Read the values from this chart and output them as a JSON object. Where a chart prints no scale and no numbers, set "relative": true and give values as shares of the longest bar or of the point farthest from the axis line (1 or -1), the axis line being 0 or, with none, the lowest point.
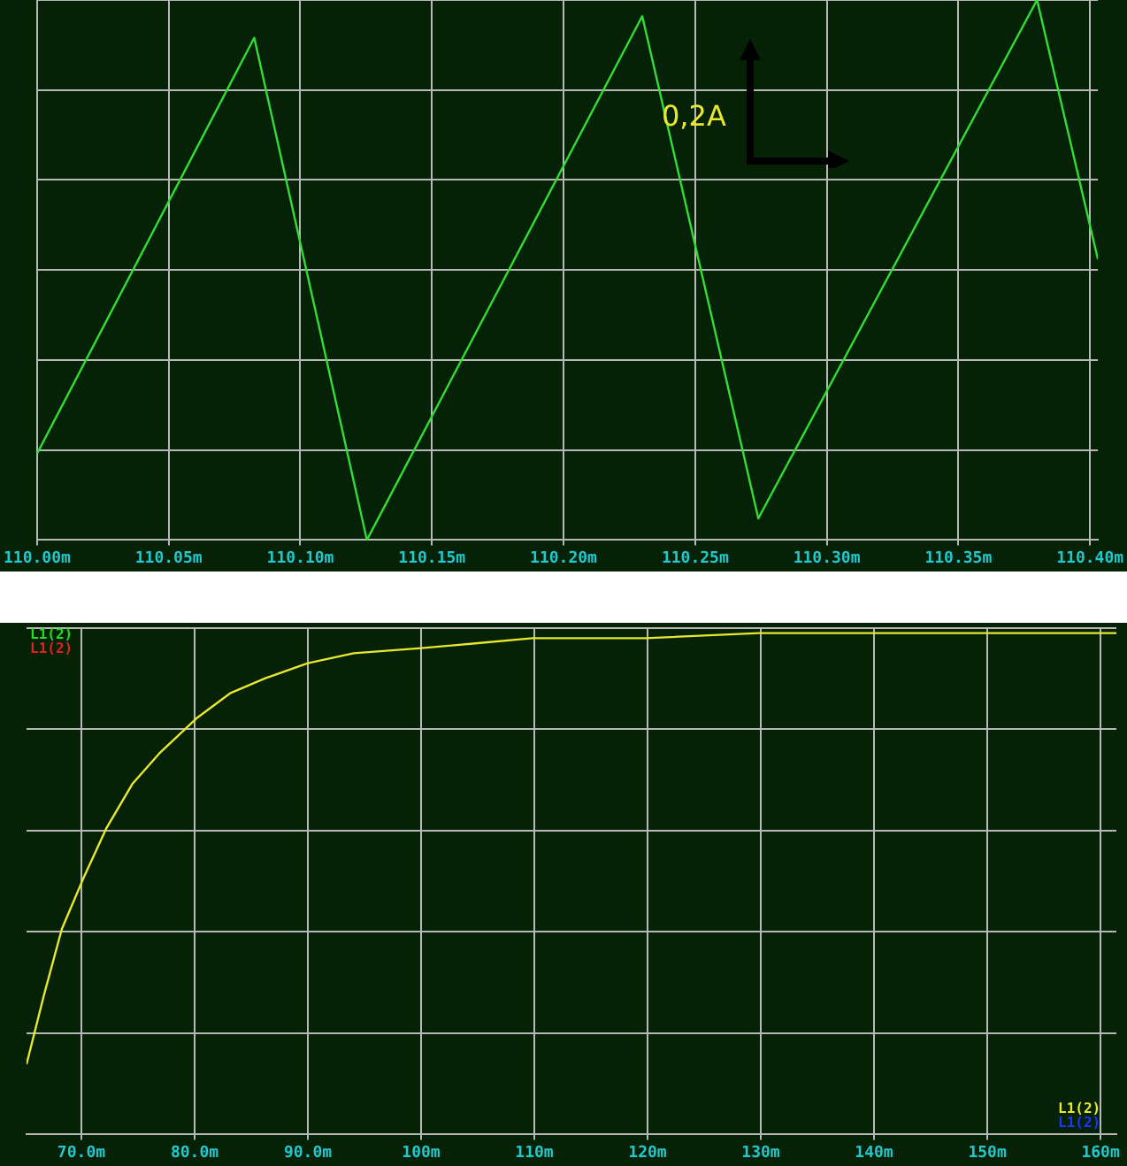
{
  "chart_data": [
    {
      "type": "line",
      "relative": true,
      "grid": true,
      "legend": false,
      "marker": "none",
      "line_style": "solid",
      "tick_labels": "x",
      "xlim": [
        110.0,
        110.403
      ],
      "xticks": [
        {
          "value": 110.0,
          "label": "110.00m"
        },
        {
          "value": 110.05,
          "label": "110.05m"
        },
        {
          "value": 110.1,
          "label": "110.10m"
        },
        {
          "value": 110.15,
          "label": "110.15m"
        },
        {
          "value": 110.2,
          "label": "110.20m"
        },
        {
          "value": 110.25,
          "label": "110.25m"
        },
        {
          "value": 110.3,
          "label": "110.30m"
        },
        {
          "value": 110.35,
          "label": "110.35m"
        },
        {
          "value": 110.4,
          "label": "110.40m"
        }
      ],
      "annotations": [
        "0,2A"
      ],
      "series": [
        {
          "color": "#33dd33",
          "x": [
            110.0,
            110.0825,
            110.1253,
            110.2299,
            110.274,
            110.3799,
            110.403
          ],
          "values": [
            0.16,
            0.93,
            0,
            0.97,
            0.04,
            1,
            0.52
          ]
        }
      ]
    },
    {
      "type": "line",
      "relative": true,
      "grid": true,
      "legend": false,
      "marker": "none",
      "line_style": "solid",
      "tick_labels": "x",
      "xlim": [
        65.16,
        161.4
      ],
      "xticks": [
        {
          "value": 70,
          "label": "70.0m"
        },
        {
          "value": 80,
          "label": "80.0m"
        },
        {
          "value": 90,
          "label": "90.0m"
        },
        {
          "value": 100,
          "label": "100m"
        },
        {
          "value": 110,
          "label": "110m"
        },
        {
          "value": 120,
          "label": "120m"
        },
        {
          "value": 130,
          "label": "130m"
        },
        {
          "value": 140,
          "label": "140m"
        },
        {
          "value": 150,
          "label": "150m"
        },
        {
          "value": 160,
          "label": "160m"
        }
      ],
      "annotations": [
        "L1(2)",
        "L1(2)",
        "L1(2)",
        "L1(2)"
      ],
      "series": [
        {
          "color": "#e8e830",
          "x": [
            65.16,
            66.72,
            68.28,
            70.16,
            72.19,
            74.53,
            76.88,
            80.16,
            83.13,
            86.25,
            90.0,
            94.06,
            100,
            105,
            109.84,
            119.84,
            129.84,
            139.84,
            149.84,
            161.4
          ],
          "values": [
            0.14,
            0.28,
            0.41,
            0.51,
            0.61,
            0.7,
            0.76,
            0.83,
            0.88,
            0.91,
            0.94,
            0.96,
            0.97,
            0.98,
            0.99,
            0.99,
            1.0,
            1.0,
            1.0,
            1.0
          ]
        }
      ]
    }
  ]
}
